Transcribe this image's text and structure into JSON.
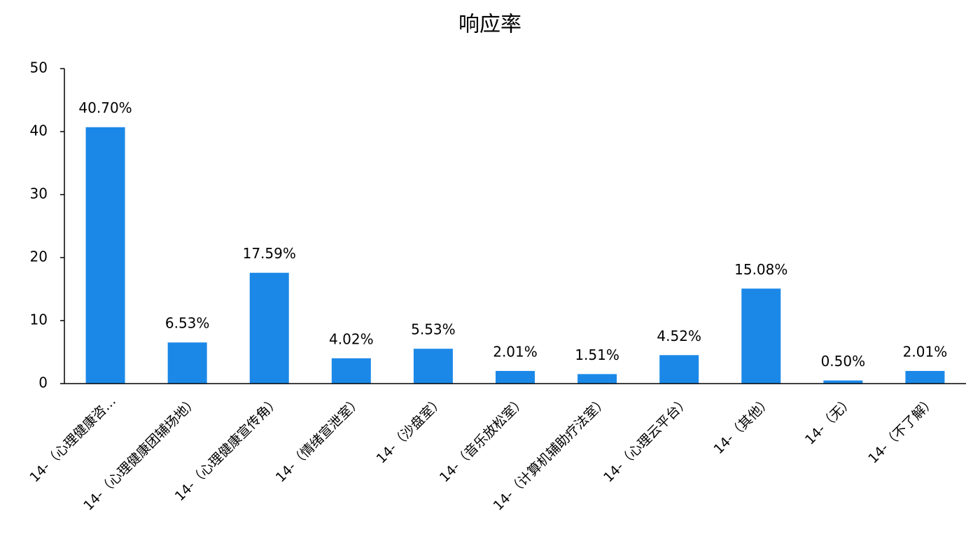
{
  "chart_data": {
    "type": "bar",
    "title": "响应率",
    "categories": [
      "14-（心理健康咨…",
      "14-（心理健康团辅场地）",
      "14-（心理健康宣传角）",
      "14-（情绪宣泄室）",
      "14-（沙盘室）",
      "14-（音乐放松室）",
      "14-（计算机辅助疗法室）",
      "14-（心理云平台）",
      "14-（其他）",
      "14-（无）",
      "14-（不了解）"
    ],
    "values": [
      40.7,
      6.53,
      17.59,
      4.02,
      5.53,
      2.01,
      1.51,
      4.52,
      15.08,
      0.5,
      2.01
    ],
    "value_labels": [
      "40.70%",
      "6.53%",
      "17.59%",
      "4.02%",
      "5.53%",
      "2.01%",
      "1.51%",
      "4.52%",
      "15.08%",
      "0.50%",
      "2.01%"
    ],
    "color": "#1b88e8",
    "ylim": [
      0,
      50
    ],
    "yticks": [
      0,
      10,
      20,
      30,
      40,
      50
    ],
    "grid": false
  }
}
